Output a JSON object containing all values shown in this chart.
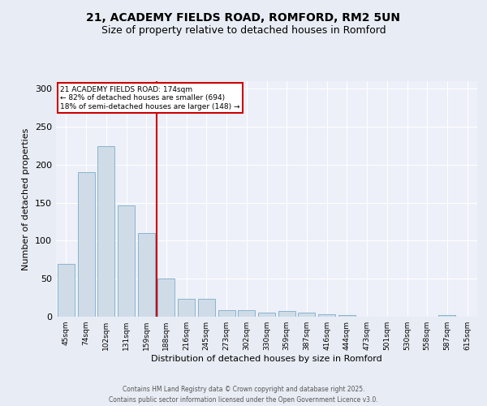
{
  "title_line1": "21, ACADEMY FIELDS ROAD, ROMFORD, RM2 5UN",
  "title_line2": "Size of property relative to detached houses in Romford",
  "xlabel": "Distribution of detached houses by size in Romford",
  "ylabel": "Number of detached properties",
  "bar_labels": [
    "45sqm",
    "74sqm",
    "102sqm",
    "131sqm",
    "159sqm",
    "188sqm",
    "216sqm",
    "245sqm",
    "273sqm",
    "302sqm",
    "330sqm",
    "359sqm",
    "387sqm",
    "416sqm",
    "444sqm",
    "473sqm",
    "501sqm",
    "530sqm",
    "558sqm",
    "587sqm",
    "615sqm"
  ],
  "bar_values": [
    70,
    190,
    225,
    146,
    110,
    50,
    23,
    23,
    9,
    9,
    5,
    8,
    5,
    3,
    2,
    0,
    0,
    0,
    0,
    2,
    0
  ],
  "bar_color": "#cfdce8",
  "bar_edge_color": "#8ab4ce",
  "property_label": "21 ACADEMY FIELDS ROAD: 174sqm",
  "annotation_line2": "← 82% of detached houses are smaller (694)",
  "annotation_line3": "18% of semi-detached houses are larger (148) →",
  "vline_color": "#cc0000",
  "annotation_box_color": "#cc0000",
  "ylim": [
    0,
    310
  ],
  "yticks": [
    0,
    50,
    100,
    150,
    200,
    250,
    300
  ],
  "bg_color": "#e8ecf4",
  "plot_bg_color": "#edf0f8",
  "footer_line1": "Contains HM Land Registry data © Crown copyright and database right 2025.",
  "footer_line2": "Contains public sector information licensed under the Open Government Licence v3.0."
}
